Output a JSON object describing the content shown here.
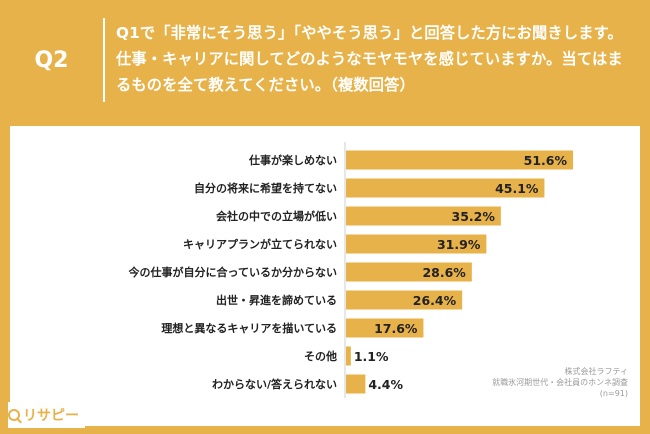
{
  "header": {
    "q_label": "Q2",
    "question": "Q1で「非常にそう思う」「ややそう思う」と回答した方にお聞きします。仕事・キャリアに関してどのようなモヤモヤを感じていますか。当てはまるものを全て教えてください。（複数回答）"
  },
  "colors": {
    "frame": "#e8b24a",
    "bar": "#e8b24a",
    "panel": "#ffffff",
    "text": "#222222"
  },
  "chart_data": {
    "type": "bar",
    "orientation": "horizontal",
    "categories": [
      "仕事が楽しめない",
      "自分の将来に希望を持てない",
      "会社の中での立場が低い",
      "キャリアプランが立てられない",
      "今の仕事が自分に合っているか分からない",
      "出世・昇進を諦めている",
      "理想と異なるキャリアを描いている",
      "その他",
      "わからない/答えられない"
    ],
    "values": [
      51.6,
      45.1,
      35.2,
      31.9,
      28.6,
      26.4,
      17.6,
      1.1,
      4.4
    ],
    "value_labels": [
      "51.6%",
      "45.1%",
      "35.2%",
      "31.9%",
      "28.6%",
      "26.4%",
      "17.6%",
      "1.1%",
      "4.4%"
    ],
    "xlim": [
      0,
      60
    ],
    "grid": false,
    "legend": "none"
  },
  "footer": {
    "brand": "リサピー",
    "brand_icon": "magnifier-icon",
    "source_lines": [
      "株式会社ラフティ",
      "就職氷河期世代・会社員のホンネ調査",
      "(n=91)"
    ]
  }
}
